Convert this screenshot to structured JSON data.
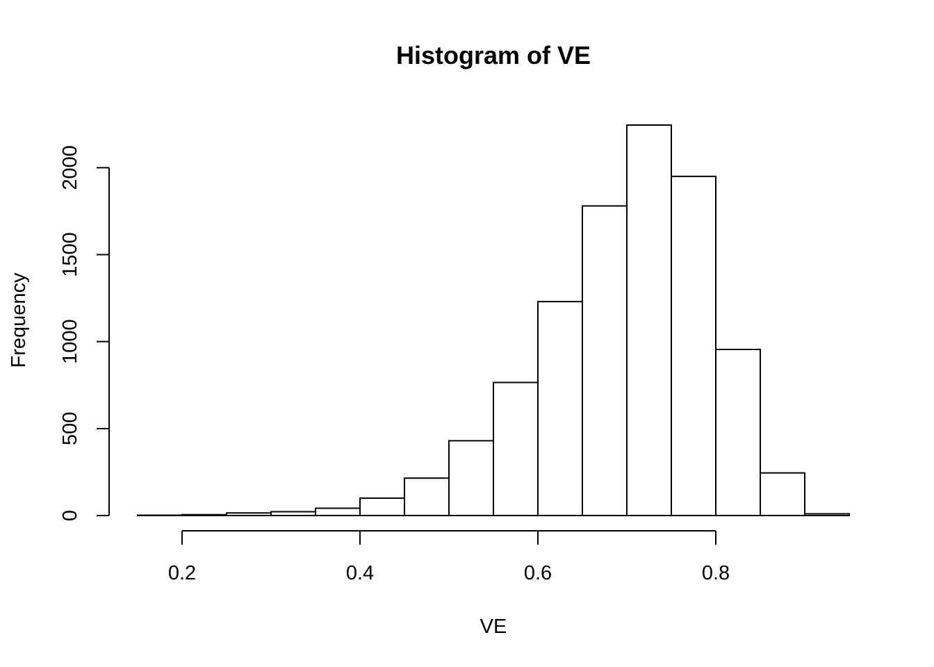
{
  "chart_data": {
    "type": "bar",
    "title": "Histogram of VE",
    "xlabel": "VE",
    "ylabel": "Frequency",
    "bins": [
      [
        0.15,
        0.2
      ],
      [
        0.2,
        0.25
      ],
      [
        0.25,
        0.3
      ],
      [
        0.3,
        0.35
      ],
      [
        0.35,
        0.4
      ],
      [
        0.4,
        0.45
      ],
      [
        0.45,
        0.5
      ],
      [
        0.5,
        0.55
      ],
      [
        0.55,
        0.6
      ],
      [
        0.6,
        0.65
      ],
      [
        0.65,
        0.7
      ],
      [
        0.7,
        0.75
      ],
      [
        0.75,
        0.8
      ],
      [
        0.8,
        0.85
      ],
      [
        0.85,
        0.9
      ],
      [
        0.9,
        0.95
      ]
    ],
    "values": [
      2,
      5,
      15,
      22,
      42,
      100,
      215,
      430,
      765,
      1230,
      1780,
      2245,
      1950,
      955,
      245,
      10
    ],
    "xticks": [
      0.2,
      0.4,
      0.6,
      0.8
    ],
    "xtick_labels": [
      "0.2",
      "0.4",
      "0.6",
      "0.8"
    ],
    "yticks": [
      0,
      500,
      1000,
      1500,
      2000
    ],
    "ytick_labels": [
      "0",
      "500",
      "1000",
      "1500",
      "2000"
    ],
    "xlim": [
      0.15,
      0.95
    ],
    "ylim": [
      0,
      2245
    ],
    "grid": false,
    "fill_color": "#ffffff",
    "stroke_color": "#000000"
  }
}
